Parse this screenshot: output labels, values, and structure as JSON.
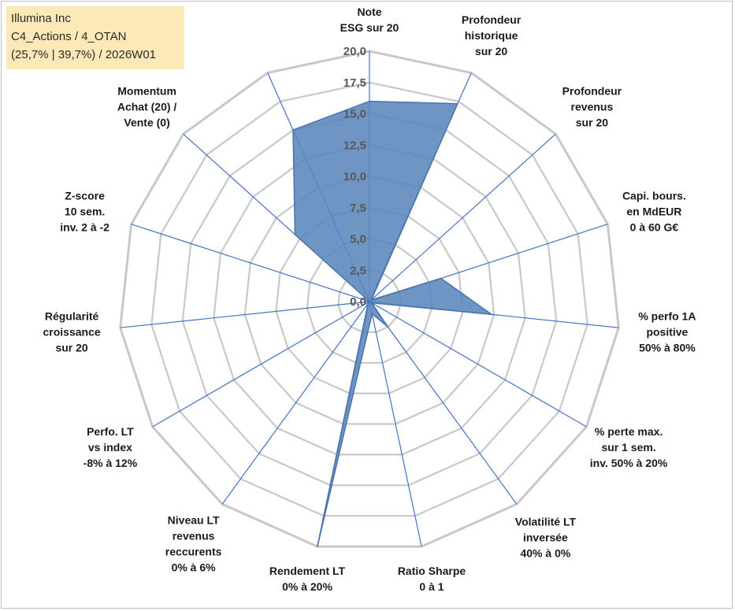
{
  "info_box": {
    "line1": "Illumina Inc",
    "line2": "C4_Actions / 4_OTAN",
    "line3": "(25,7% | 39,7%) / 2026W01"
  },
  "colors": {
    "grid": "#c8c8c8",
    "spoke": "#4472c4",
    "fill": "#5b86bd",
    "fill_stroke": "#4a74ad",
    "info_bg": "#fde9b8"
  },
  "chart_data": {
    "type": "radar",
    "title": "",
    "range": [
      0,
      20
    ],
    "grid_step": 2.5,
    "tick_labels": [
      "0,0",
      "2,5",
      "5,0",
      "7,5",
      "10,0",
      "12,5",
      "15,0",
      "17,5",
      "20,0"
    ],
    "axes": [
      {
        "label": [
          "Note",
          "ESG sur 20"
        ],
        "value": 16.0
      },
      {
        "label": [
          "Profondeur",
          "historique",
          "sur 20"
        ],
        "value": 17.3
      },
      {
        "label": [
          "Profondeur",
          "revenus",
          "sur 20"
        ],
        "value": 0.2
      },
      {
        "label": [
          "Capi. bours.",
          "en MdEUR",
          "0 à 60 G€"
        ],
        "value": 6.0
      },
      {
        "label": [
          "% perfo 1A",
          "positive",
          "50% à 80%"
        ],
        "value": 9.8
      },
      {
        "label": [
          "% perte max.",
          "sur 1 sem.",
          "inv. 50% à 20%"
        ],
        "value": 0.2
      },
      {
        "label": [
          "Volatilité LT",
          "inversée",
          "40% à 0%"
        ],
        "value": 2.5
      },
      {
        "label": [
          "Ratio Sharpe",
          "0 à 1"
        ],
        "value": 1.0
      },
      {
        "label": [
          "Rendement LT",
          "0% à 20%"
        ],
        "value": 20.0
      },
      {
        "label": [
          "Niveau LT",
          "revenus",
          "reccurents",
          "0% à 6%"
        ],
        "value": 0.2
      },
      {
        "label": [
          "Perfo. LT",
          "vs index",
          "-8% à 12%"
        ],
        "value": 0.0
      },
      {
        "label": [
          "Régularité",
          "croissance",
          "sur 20"
        ],
        "value": 0.0
      },
      {
        "label": [
          "Z-score",
          "10 sem.",
          "inv. 2 à -2"
        ],
        "value": 0.0
      },
      {
        "label": [
          "Momentum",
          "Achat (20) /",
          "Vente (0)"
        ],
        "value": 8.0
      },
      {
        "label": [
          "",
          ""
        ],
        "value": 15.0
      }
    ]
  }
}
